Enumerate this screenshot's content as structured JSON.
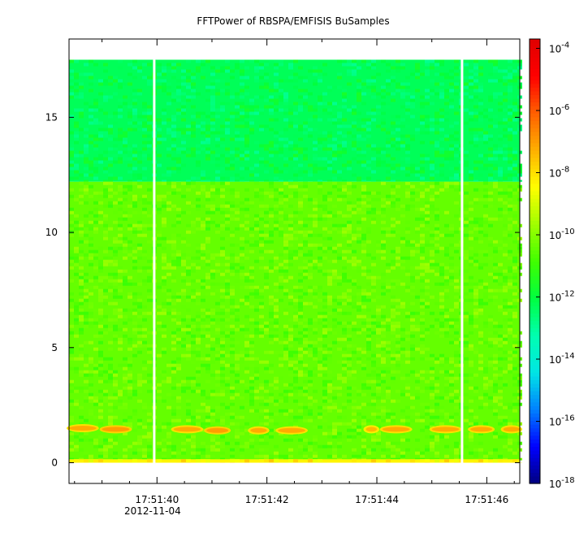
{
  "chart_data": {
    "type": "heatmap",
    "title": "FFTPower of RBSPA/EMFISIS  BuSamples",
    "xlabel": "",
    "ylabel": "",
    "date_label": "2012-11-04",
    "x_range": [
      "17:51:38.4",
      "17:51:46.6"
    ],
    "x_ticks": [
      {
        "time": "17:51:40",
        "label": "17:51:40"
      },
      {
        "time": "17:51:42",
        "label": "17:51:42"
      },
      {
        "time": "17:51:44",
        "label": "17:51:44"
      },
      {
        "time": "17:51:46",
        "label": "17:51:46"
      }
    ],
    "x_minor_ticks": [
      "17:51:39",
      "17:51:41",
      "17:51:43",
      "17:51:45"
    ],
    "ylim": [
      -0.9,
      18.4
    ],
    "y_ticks": [
      {
        "value": 0,
        "label": "0"
      },
      {
        "value": 5,
        "label": "5"
      },
      {
        "value": 10,
        "label": "10"
      },
      {
        "value": 15,
        "label": "15"
      }
    ],
    "data_y_extent": [
      0,
      17.5
    ],
    "data_gaps": [
      "17:51:39.95",
      "17:51:45.55"
    ],
    "colorbar": {
      "scale": "log",
      "range": [
        "1e-18",
        "2e-4"
      ],
      "ticks": [
        {
          "value": "1e-4",
          "base": "10",
          "exp": "-4"
        },
        {
          "value": "1e-6",
          "base": "10",
          "exp": "-6"
        },
        {
          "value": "1e-8",
          "base": "10",
          "exp": "-8"
        },
        {
          "value": "1e-10",
          "base": "10",
          "exp": "-10"
        },
        {
          "value": "1e-12",
          "base": "10",
          "exp": "-12"
        },
        {
          "value": "1e-14",
          "base": "10",
          "exp": "-14"
        },
        {
          "value": "1e-16",
          "base": "10",
          "exp": "-16"
        },
        {
          "value": "1e-18",
          "base": "10",
          "exp": "-18"
        }
      ],
      "colormap": [
        "#00007f",
        "#0000ff",
        "#0080ff",
        "#00e5e5",
        "#00ffb0",
        "#00ff40",
        "#40ff00",
        "#a0ff00",
        "#ffff00",
        "#ffb000",
        "#ff6000",
        "#ff0000",
        "#e00000"
      ]
    },
    "bands": [
      {
        "y_range": [
          12.2,
          17.5
        ],
        "power_log10": -12.3,
        "description": "upper band"
      },
      {
        "y_range": [
          0.1,
          12.2
        ],
        "power_log10": -10.4,
        "description": "main band"
      },
      {
        "y_range": [
          0,
          0.15
        ],
        "power_log10": -8.3,
        "description": "lowest frequency"
      }
    ],
    "emission_bursts": [
      {
        "t_start": "17:51:38.4",
        "t_end": "17:51:38.9",
        "freq": 1.5,
        "power_log10": -7.2
      },
      {
        "t_start": "17:51:39.0",
        "t_end": "17:51:39.5",
        "freq": 1.45,
        "power_log10": -7.0
      },
      {
        "t_start": "17:51:40.3",
        "t_end": "17:51:40.8",
        "freq": 1.45,
        "power_log10": -7.2
      },
      {
        "t_start": "17:51:40.9",
        "t_end": "17:51:41.3",
        "freq": 1.4,
        "power_log10": -7.0
      },
      {
        "t_start": "17:51:41.7",
        "t_end": "17:51:42.0",
        "freq": 1.4,
        "power_log10": -7.2
      },
      {
        "t_start": "17:51:42.2",
        "t_end": "17:51:42.7",
        "freq": 1.4,
        "power_log10": -7.2
      },
      {
        "t_start": "17:51:43.8",
        "t_end": "17:51:44.0",
        "freq": 1.45,
        "power_log10": -7.4
      },
      {
        "t_start": "17:51:44.1",
        "t_end": "17:51:44.6",
        "freq": 1.45,
        "power_log10": -7.2
      },
      {
        "t_start": "17:51:45.0",
        "t_end": "17:51:45.5",
        "freq": 1.45,
        "power_log10": -7.2
      },
      {
        "t_start": "17:51:45.7",
        "t_end": "17:51:46.1",
        "freq": 1.45,
        "power_log10": -7.2
      },
      {
        "t_start": "17:51:46.3",
        "t_end": "17:51:46.6",
        "freq": 1.45,
        "power_log10": -7.2
      }
    ]
  }
}
